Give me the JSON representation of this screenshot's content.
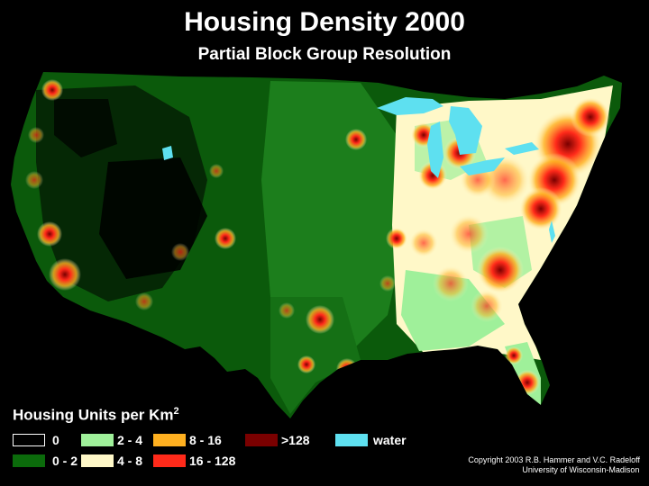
{
  "title": "Housing Density 2000",
  "subtitle": "Partial Block Group Resolution",
  "legend": {
    "title": "Housing Units per Km",
    "title_superscript": "2",
    "items": [
      {
        "label": "0",
        "color": "#000000"
      },
      {
        "label": "0 - 2",
        "color": "#0b6b0b"
      },
      {
        "label": "2 - 4",
        "color": "#9ff09a"
      },
      {
        "label": "4 - 8",
        "color": "#fff8c8"
      },
      {
        "label": "8 - 16",
        "color": "#ffb020"
      },
      {
        "label": "16 - 128",
        "color": "#ff2a1a"
      },
      {
        "label": ">128",
        "color": "#7a0000"
      },
      {
        "label": "water",
        "color": "#5ee0f0"
      }
    ]
  },
  "copyright": {
    "line1": "Copyright 2003 R.B. Hammer and V.C. Radeloff",
    "line2": "University of Wisconsin-Madison"
  }
}
